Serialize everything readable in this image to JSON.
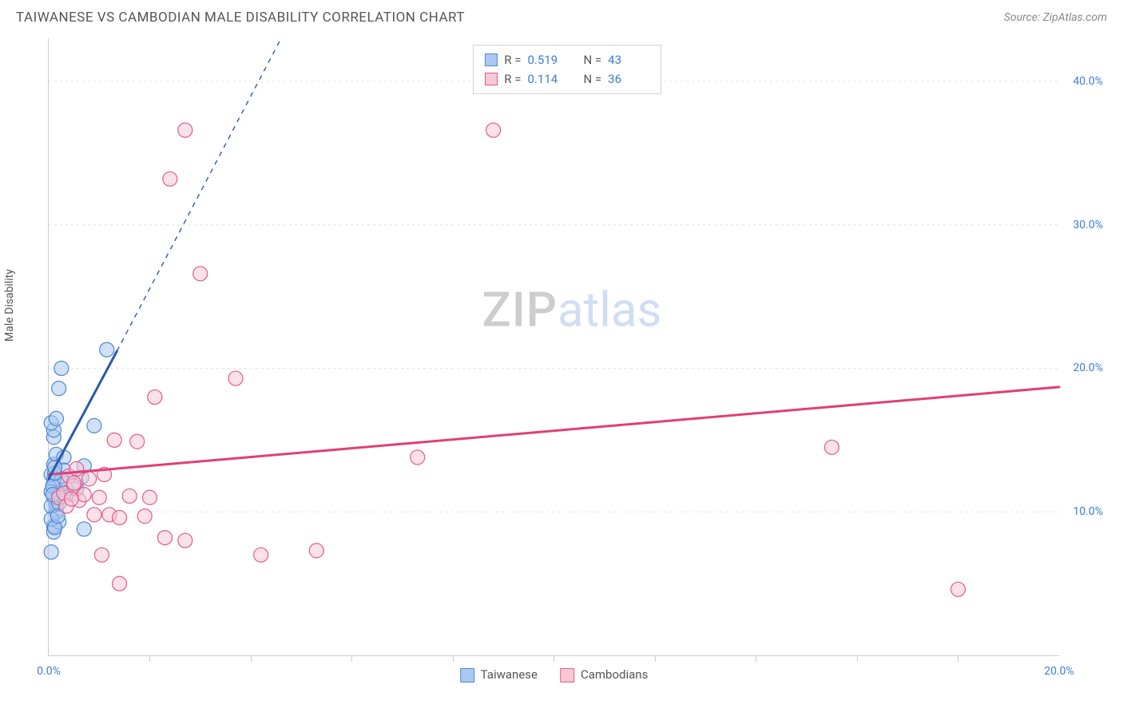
{
  "title": "TAIWANESE VS CAMBODIAN MALE DISABILITY CORRELATION CHART",
  "source": "Source: ZipAtlas.com",
  "ylabel": "Male Disability",
  "watermark": {
    "left": "ZIP",
    "right": "atlas"
  },
  "colors": {
    "blue_fill": "#a9c9f0",
    "blue_stroke": "#4f86cf",
    "pink_fill": "#f7c9d6",
    "pink_stroke": "#e45a8b",
    "grid": "#e2e2e2",
    "axis_text": "#3b7dd8",
    "title_text": "#555555"
  },
  "chart": {
    "type": "scatter-regression",
    "x_domain": [
      0,
      20
    ],
    "y_domain": [
      0,
      43
    ],
    "x_ticks": [
      0,
      20
    ],
    "x_tick_labels": [
      "0.0%",
      "20.0%"
    ],
    "x_minor_ticks": [
      2,
      4,
      6,
      8,
      10,
      12,
      14,
      16,
      18
    ],
    "y_ticks": [
      10,
      20,
      30,
      40
    ],
    "y_tick_labels": [
      "10.0%",
      "20.0%",
      "30.0%",
      "40.0%"
    ],
    "marker_radius": 9,
    "marker_opacity": 0.55,
    "grid_dash": "3,4"
  },
  "legend": {
    "items": [
      {
        "label": "Taiwanese",
        "fill": "#a9c9f0",
        "stroke": "#4f86cf"
      },
      {
        "label": "Cambodians",
        "fill": "#f7c9d6",
        "stroke": "#e45a8b"
      }
    ]
  },
  "stats": [
    {
      "fill": "#a9c9f0",
      "stroke": "#4f86cf",
      "r_label": "R =",
      "r": "0.519",
      "n_label": "N =",
      "n": "43"
    },
    {
      "fill": "#f7c9d6",
      "stroke": "#e45a8b",
      "r_label": "R =",
      "r": "0.114",
      "n_label": "N =",
      "n": "36"
    }
  ],
  "series": {
    "taiwanese": {
      "fill": "#a9c9f0",
      "stroke": "#4f86cf",
      "reg_line": {
        "solid": [
          [
            0,
            12.3
          ],
          [
            1.35,
            21.2
          ]
        ],
        "dashed": [
          [
            1.35,
            21.2
          ],
          [
            4.6,
            43
          ]
        ],
        "stroke": "#2a5aa8",
        "width": 3
      },
      "points": [
        [
          0.05,
          7.2
        ],
        [
          0.1,
          8.6
        ],
        [
          0.1,
          9.0
        ],
        [
          0.2,
          9.3
        ],
        [
          0.15,
          10.0
        ],
        [
          0.15,
          10.5
        ],
        [
          0.1,
          11.0
        ],
        [
          0.2,
          11.3
        ],
        [
          0.25,
          11.5
        ],
        [
          0.1,
          12.0
        ],
        [
          0.1,
          12.3
        ],
        [
          0.05,
          12.6
        ],
        [
          0.1,
          13.3
        ],
        [
          0.15,
          14.0
        ],
        [
          0.1,
          15.2
        ],
        [
          0.1,
          15.7
        ],
        [
          0.05,
          16.2
        ],
        [
          0.15,
          16.5
        ],
        [
          0.2,
          18.6
        ],
        [
          0.25,
          20.0
        ],
        [
          0.45,
          11.2
        ],
        [
          0.55,
          11.6
        ],
        [
          0.65,
          12.4
        ],
        [
          0.7,
          8.8
        ],
        [
          0.7,
          13.2
        ],
        [
          0.9,
          16.0
        ],
        [
          1.15,
          21.3
        ],
        [
          0.35,
          11.6
        ],
        [
          0.4,
          12.5
        ],
        [
          0.3,
          13.8
        ],
        [
          0.3,
          12.9
        ],
        [
          0.05,
          10.4
        ],
        [
          0.05,
          11.4
        ],
        [
          0.05,
          9.5
        ],
        [
          0.2,
          10.6
        ],
        [
          0.2,
          11.2
        ],
        [
          0.25,
          12.2
        ],
        [
          0.08,
          11.8
        ],
        [
          0.08,
          11.2
        ],
        [
          0.12,
          12.7
        ],
        [
          0.12,
          13.1
        ],
        [
          0.12,
          8.9
        ],
        [
          0.18,
          9.7
        ]
      ]
    },
    "cambodians": {
      "fill": "#f7c9d6",
      "stroke": "#e45a8b",
      "reg_line": {
        "solid": [
          [
            0,
            12.6
          ],
          [
            20,
            18.7
          ]
        ],
        "stroke": "#e23e76",
        "width": 3
      },
      "points": [
        [
          0.2,
          11.0
        ],
        [
          0.3,
          11.3
        ],
        [
          0.4,
          12.5
        ],
        [
          0.5,
          11.8
        ],
        [
          0.6,
          10.8
        ],
        [
          0.7,
          11.2
        ],
        [
          0.55,
          13.0
        ],
        [
          0.8,
          12.3
        ],
        [
          0.9,
          9.8
        ],
        [
          1.0,
          11.0
        ],
        [
          1.1,
          12.6
        ],
        [
          1.2,
          9.8
        ],
        [
          1.4,
          9.6
        ],
        [
          1.3,
          15.0
        ],
        [
          1.6,
          11.1
        ],
        [
          1.75,
          14.9
        ],
        [
          1.9,
          9.7
        ],
        [
          2.0,
          11.0
        ],
        [
          2.1,
          18.0
        ],
        [
          2.3,
          8.2
        ],
        [
          2.4,
          33.2
        ],
        [
          2.7,
          36.6
        ],
        [
          2.7,
          8.0
        ],
        [
          3.0,
          26.6
        ],
        [
          3.7,
          19.3
        ],
        [
          4.2,
          7.0
        ],
        [
          5.3,
          7.3
        ],
        [
          7.3,
          13.8
        ],
        [
          8.8,
          36.6
        ],
        [
          1.4,
          5.0
        ],
        [
          1.05,
          7.0
        ],
        [
          15.5,
          14.5
        ],
        [
          18.0,
          4.6
        ],
        [
          0.35,
          10.4
        ],
        [
          0.45,
          10.9
        ],
        [
          0.5,
          12.0
        ]
      ]
    }
  }
}
